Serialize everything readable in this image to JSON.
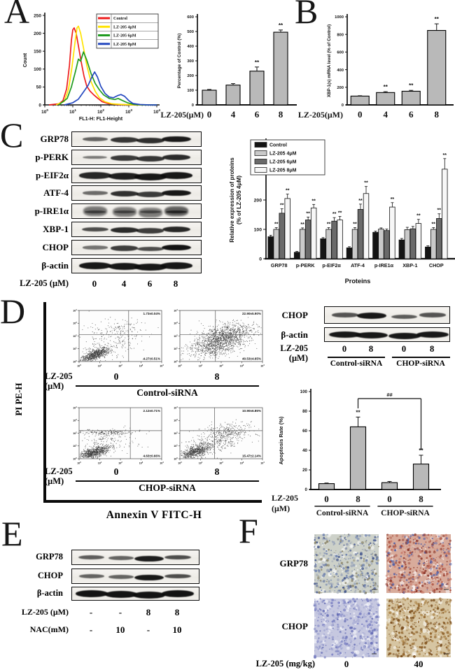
{
  "panel_letters": [
    "A",
    "B",
    "C",
    "D",
    "E",
    "F"
  ],
  "colors": {
    "bar_fill": "#b9b9b9",
    "bar_edge": "#000000",
    "hist_series": [
      "#ee1c1c",
      "#ffe400",
      "#1f9b1f",
      "#2448c0"
    ],
    "group_series": [
      "#141414",
      "#c9c9c9",
      "#6a6a6a",
      "#f7f7f7"
    ]
  },
  "chart_data": [
    {
      "id": "hist-A",
      "type": "line",
      "xlabel": "FL1-H: FL1-Height",
      "ylabel": "Count",
      "xscale": "log",
      "xlim": [
        1,
        10000
      ],
      "ylim": [
        0,
        250
      ],
      "yticks": [
        0,
        50,
        100,
        150,
        200,
        250
      ],
      "series": [
        {
          "name": "Control",
          "color": "#ee1c1c",
          "points_log10": [
            [
              0.15,
              0
            ],
            [
              0.5,
              3
            ],
            [
              0.65,
              12
            ],
            [
              0.78,
              45
            ],
            [
              0.88,
              110
            ],
            [
              0.95,
              180
            ],
            [
              1.0,
              210
            ],
            [
              1.05,
              215
            ],
            [
              1.12,
              200
            ],
            [
              1.2,
              165
            ],
            [
              1.3,
              120
            ],
            [
              1.4,
              80
            ],
            [
              1.5,
              52
            ],
            [
              1.62,
              38
            ],
            [
              1.75,
              28
            ],
            [
              1.9,
              18
            ],
            [
              2.05,
              9
            ],
            [
              2.25,
              4
            ],
            [
              2.6,
              1
            ],
            [
              3.2,
              0
            ],
            [
              4.0,
              0
            ]
          ]
        },
        {
          "name": "LZ-205 4μM",
          "color": "#ffe400",
          "points_log10": [
            [
              0.4,
              0
            ],
            [
              0.7,
              10
            ],
            [
              0.85,
              45
            ],
            [
              0.97,
              105
            ],
            [
              1.08,
              175
            ],
            [
              1.15,
              215
            ],
            [
              1.2,
              220
            ],
            [
              1.28,
              200
            ],
            [
              1.38,
              160
            ],
            [
              1.5,
              110
            ],
            [
              1.65,
              65
            ],
            [
              1.8,
              38
            ],
            [
              1.95,
              20
            ],
            [
              2.15,
              9
            ],
            [
              2.4,
              3
            ],
            [
              2.8,
              1
            ],
            [
              3.3,
              0
            ],
            [
              4.0,
              0
            ]
          ]
        },
        {
          "name": "LZ-205 6μM",
          "color": "#1f9b1f",
          "points_log10": [
            [
              0.5,
              0
            ],
            [
              0.8,
              18
            ],
            [
              0.95,
              50
            ],
            [
              1.1,
              95
            ],
            [
              1.2,
              128
            ],
            [
              1.28,
              122
            ],
            [
              1.38,
              148
            ],
            [
              1.5,
              125
            ],
            [
              1.65,
              88
            ],
            [
              1.8,
              60
            ],
            [
              1.95,
              42
            ],
            [
              2.1,
              28
            ],
            [
              2.3,
              18
            ],
            [
              2.5,
              15
            ],
            [
              2.62,
              18
            ],
            [
              2.75,
              13
            ],
            [
              2.95,
              6
            ],
            [
              3.2,
              1
            ],
            [
              3.5,
              0
            ],
            [
              4.0,
              0
            ]
          ]
        },
        {
          "name": "LZ-205 8μM",
          "color": "#2448c0",
          "points_log10": [
            [
              0.7,
              0
            ],
            [
              1.0,
              6
            ],
            [
              1.2,
              16
            ],
            [
              1.4,
              38
            ],
            [
              1.55,
              55
            ],
            [
              1.68,
              78
            ],
            [
              1.78,
              92
            ],
            [
              1.88,
              78
            ],
            [
              2.0,
              52
            ],
            [
              2.15,
              32
            ],
            [
              2.3,
              22
            ],
            [
              2.45,
              20
            ],
            [
              2.6,
              26
            ],
            [
              2.72,
              29
            ],
            [
              2.85,
              24
            ],
            [
              3.0,
              12
            ],
            [
              3.15,
              4
            ],
            [
              3.4,
              1
            ],
            [
              3.7,
              0
            ],
            [
              4.0,
              0
            ]
          ]
        }
      ]
    },
    {
      "id": "bar-A",
      "type": "bar",
      "ylabel": "Percentage of Control (%)",
      "ylim": [
        0,
        600
      ],
      "yticks": [
        0,
        100,
        200,
        300,
        400,
        500,
        600
      ],
      "x_prefix": "LZ-205(μM)",
      "categories": [
        "0",
        "4",
        "6",
        "8"
      ],
      "values": [
        100,
        135,
        230,
        495
      ],
      "errors": [
        5,
        10,
        28,
        15
      ],
      "sig": [
        "",
        "",
        "**",
        "**"
      ]
    },
    {
      "id": "bar-B",
      "type": "bar",
      "ylabel": "XBP-1(s) mRNA level (% of Control)",
      "ylim": [
        0,
        1000
      ],
      "yticks": [
        0,
        200,
        400,
        600,
        800,
        1000
      ],
      "x_prefix": "LZ-205(μM)",
      "categories": [
        "0",
        "4",
        "6",
        "8"
      ],
      "values": [
        100,
        140,
        155,
        845
      ],
      "errors": [
        4,
        10,
        10,
        75
      ],
      "sig": [
        "",
        "**",
        "**",
        "**"
      ]
    },
    {
      "id": "bar-C",
      "type": "grouped-bar",
      "ylabel_lines": [
        "Relative expression of proteins",
        "(% of LZ-205 4μM)"
      ],
      "xlabel": "Proteins",
      "ylim": [
        0,
        400
      ],
      "yticks": [
        0,
        100,
        200,
        300,
        400
      ],
      "categories": [
        "GRP78",
        "p-PERK",
        "p-EIF2α",
        "ATF-4",
        "p-IRE1α",
        "XBP-1",
        "CHOP"
      ],
      "series": [
        {
          "name": "Control",
          "color": "#141414",
          "values": [
            75,
            22,
            68,
            37,
            90,
            64,
            40
          ],
          "errors": [
            5,
            3,
            4,
            4,
            4,
            5,
            4
          ],
          "sig": [
            "",
            "",
            "",
            "",
            "",
            "",
            ""
          ]
        },
        {
          "name": "LZ-205 4μM",
          "color": "#c9c9c9",
          "values": [
            100,
            100,
            100,
            100,
            101,
            99,
            100
          ],
          "errors": [
            6,
            5,
            6,
            6,
            4,
            8,
            6
          ],
          "sig": [
            "**",
            "**",
            "**",
            "**",
            "",
            "",
            "**"
          ]
        },
        {
          "name": "LZ-205 6μM",
          "color": "#6a6a6a",
          "values": [
            155,
            132,
            128,
            168,
            96,
            102,
            137
          ],
          "errors": [
            15,
            10,
            12,
            18,
            5,
            8,
            16
          ],
          "sig": [
            "**",
            "**",
            "**",
            "**",
            "",
            "",
            "**"
          ]
        },
        {
          "name": "LZ-205 8μM",
          "color": "#f7f7f7",
          "values": [
            205,
            173,
            132,
            222,
            176,
            120,
            305
          ],
          "errors": [
            15,
            12,
            12,
            24,
            15,
            14,
            36
          ],
          "sig": [
            "**",
            "**",
            "**",
            "**",
            "**",
            "**",
            "**"
          ]
        }
      ]
    },
    {
      "id": "flow-D",
      "type": "scatter",
      "xlabel": "Annexin V FITC-H",
      "ylabel": "PI PE-H",
      "dose_label_lines": [
        "LZ-205",
        "(μM)"
      ],
      "axis_exponents": [
        "0",
        "1",
        "2",
        "3",
        "4"
      ],
      "groups": [
        {
          "name": "Control-siRNA",
          "doses": [
            "0",
            "8"
          ],
          "plots": [
            {
              "ur": "1.73±0.04%",
              "lr": "4.27±0.51%",
              "vline": 0.6,
              "hline": 0.47,
              "clusters": [
                [
                  0.8,
                  0.55,
                  0.35,
                  0.28,
                  700,
                  0.7
                ],
                [
                  1.6,
                  1.5,
                  0.8,
                  0.7,
                  200,
                  0.3
                ],
                [
                  1.9,
                  2.6,
                  0.7,
                  0.35,
                  100,
                  0
                ]
              ]
            },
            {
              "ur": "22.90±5.90%",
              "lr": "40.53±4.65%",
              "vline": 0.43,
              "hline": 0.47,
              "clusters": [
                [
                  1.9,
                  1.5,
                  0.75,
                  0.6,
                  1100,
                  0.5
                ],
                [
                  2.4,
                  2.3,
                  0.6,
                  0.4,
                  400,
                  0.2
                ]
              ]
            }
          ]
        },
        {
          "name": "CHOP-siRNA",
          "doses": [
            "0",
            "8"
          ],
          "plots": [
            {
              "ur": "2.12±0.71%",
              "lr": "4.63±0.66%",
              "vline": 0.62,
              "hline": 0.45,
              "clusters": [
                [
                  0.75,
                  0.5,
                  0.35,
                  0.25,
                  700,
                  0.6
                ],
                [
                  1.3,
                  2.05,
                  0.8,
                  0.12,
                  180,
                  0
                ],
                [
                  1.3,
                  1.2,
                  0.7,
                  0.5,
                  170,
                  0.2
                ]
              ]
            },
            {
              "ur": "10.90±6.85%",
              "lr": "15.47±2.14%",
              "vline": 0.42,
              "hline": 0.45,
              "clusters": [
                [
                  0.75,
                  0.55,
                  0.35,
                  0.28,
                  600,
                  0.6
                ],
                [
                  1.7,
                  1.3,
                  0.8,
                  0.6,
                  400,
                  0.6
                ],
                [
                  2.3,
                  2.2,
                  0.6,
                  0.35,
                  200,
                  0.2
                ]
              ]
            }
          ]
        }
      ]
    },
    {
      "id": "bar-D",
      "type": "bar",
      "ylabel": "Apoptosis Rate (%)",
      "ylim": [
        0,
        100
      ],
      "yticks": [
        0,
        20,
        40,
        60,
        80,
        100
      ],
      "x_prefix_lines": [
        "LZ-205",
        "(μM)"
      ],
      "categories": [
        "0",
        "8",
        "0",
        "8"
      ],
      "values": [
        6,
        64,
        7,
        26
      ],
      "errors": [
        0.6,
        10,
        1.2,
        9
      ],
      "sig": [
        "",
        "**",
        "",
        "**"
      ],
      "group_labels": [
        {
          "label": "Control-siRNA",
          "from": 0,
          "to": 1
        },
        {
          "label": "CHOP-siRNA",
          "from": 2,
          "to": 3
        }
      ],
      "bracket": {
        "from": 1,
        "to": 3,
        "label": "##"
      }
    }
  ],
  "blots": {
    "C": {
      "row_labels": [
        "GRP78",
        "p-PERK",
        "p-EIF2α",
        "ATF-4",
        "p-IRE1α",
        "XBP-1",
        "CHOP",
        "β-actin"
      ],
      "bands": [
        [
          0.45,
          0.75,
          0.8,
          0.93
        ],
        [
          0.3,
          0.72,
          0.75,
          0.82
        ],
        [
          0.85,
          0.9,
          0.95,
          0.95
        ],
        [
          0.4,
          0.78,
          0.72,
          0.95
        ],
        [
          0.55,
          0.5,
          0.45,
          0.9
        ],
        [
          0.6,
          0.82,
          0.7,
          0.85
        ],
        [
          0.35,
          0.7,
          0.6,
          0.98
        ],
        [
          0.95,
          0.95,
          0.95,
          0.95
        ]
      ],
      "wide": [
        false,
        false,
        true,
        false,
        false,
        false,
        false,
        true
      ],
      "smear": [
        false,
        false,
        false,
        false,
        true,
        false,
        false,
        false
      ],
      "lane_label": "LZ-205 (μM)",
      "lanes": [
        "0",
        "4",
        "6",
        "8"
      ]
    },
    "D": {
      "row_labels": [
        "CHOP",
        "β-actin"
      ],
      "bands": [
        [
          0.55,
          0.95,
          0.5,
          0.55
        ],
        [
          0.95,
          0.95,
          0.95,
          0.95
        ]
      ],
      "wide": [
        false,
        true
      ],
      "lane_label_lines": [
        "LZ-205",
        "(μM)"
      ],
      "lanes": [
        "0",
        "8",
        "0",
        "8"
      ],
      "group_labels": [
        "Control-siRNA",
        "CHOP-siRNA"
      ]
    },
    "E": {
      "row_labels": [
        "GRP78",
        "CHOP",
        "β-actin"
      ],
      "bands": [
        [
          0.5,
          0.45,
          0.92,
          0.6
        ],
        [
          0.45,
          0.45,
          0.95,
          0.6
        ],
        [
          0.97,
          0.97,
          0.98,
          0.98
        ]
      ],
      "wide": [
        false,
        false,
        true
      ],
      "headers": [
        {
          "label": "LZ-205 (μM)",
          "values": [
            "-",
            "-",
            "8",
            "8"
          ]
        },
        {
          "label": "NAC(mM)",
          "values": [
            "-",
            "10",
            "-",
            "10"
          ]
        }
      ]
    }
  },
  "ihc": {
    "row_labels": [
      "GRP78",
      "CHOP"
    ],
    "dose_label": "LZ-205 (mg/kg)",
    "doses": [
      "0",
      "40"
    ],
    "tiles": [
      [
        {
          "bg": "#cdd1c9",
          "colors": [
            "#6b7fae",
            "#47598e",
            "#9aa4b8",
            "#8a8468"
          ],
          "n": 430
        },
        {
          "bg": "#d8ab9b",
          "colors": [
            "#a84a38",
            "#8a3428",
            "#c87868",
            "#5060a8"
          ],
          "n": 520
        }
      ],
      [
        {
          "bg": "#c6c8e0",
          "colors": [
            "#7f85c5",
            "#666eb5",
            "#a8acd4"
          ],
          "n": 430
        },
        {
          "bg": "#d6c5a2",
          "colors": [
            "#916228",
            "#7a4e1e",
            "#b08a50"
          ],
          "n": 470
        }
      ]
    ]
  }
}
